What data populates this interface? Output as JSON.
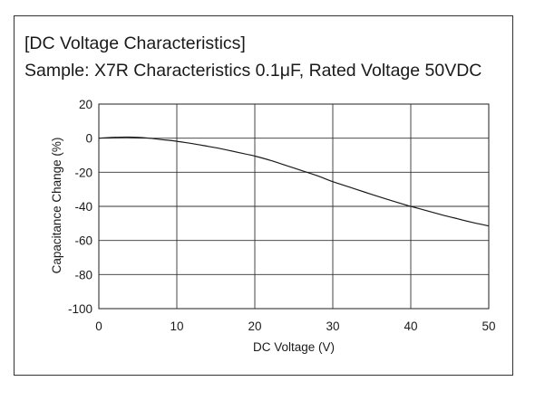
{
  "title": "[DC Voltage Characteristics]",
  "subtitle": "Sample: X7R Characteristics 0.1μF, Rated Voltage 50VDC",
  "chart_data": {
    "type": "line",
    "xlabel": "DC Voltage (V)",
    "ylabel": "Capacitance Change (%)",
    "xlim": [
      0,
      50
    ],
    "ylim": [
      -100,
      20
    ],
    "xticks": [
      "0",
      "10",
      "20",
      "30",
      "40",
      "50"
    ],
    "yticks": [
      "20",
      "0",
      "-20",
      "-40",
      "-60",
      "-80",
      "-100"
    ],
    "grid": true,
    "legend": "none",
    "line_color": "#1a1a1a",
    "series": [
      {
        "x": [
          0,
          2,
          4,
          6,
          8,
          10,
          12,
          14,
          16,
          18,
          20,
          22,
          24,
          26,
          28,
          30,
          32,
          34,
          36,
          38,
          40,
          42,
          44,
          46,
          48,
          50
        ],
        "values": [
          0,
          0.5,
          0.6,
          0.2,
          -0.8,
          -1.8,
          -3.2,
          -4.8,
          -6.5,
          -8.5,
          -10.5,
          -13,
          -16,
          -19,
          -22,
          -25.5,
          -28.5,
          -31.5,
          -34.5,
          -37.3,
          -40,
          -42.5,
          -45,
          -47.3,
          -49.5,
          -51.5
        ]
      }
    ]
  }
}
